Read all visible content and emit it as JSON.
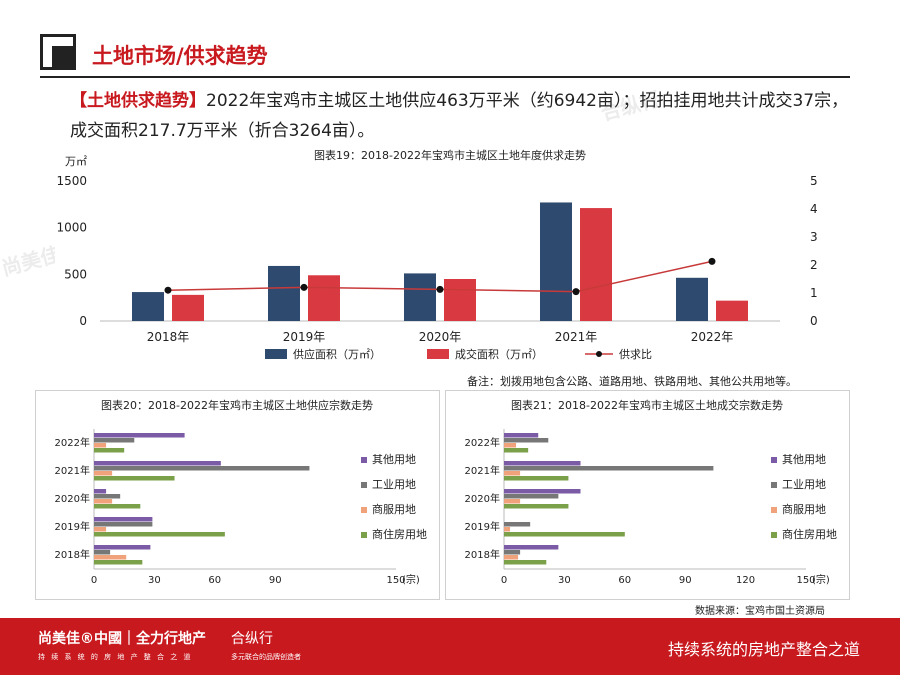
{
  "header": {
    "title": "土地市场/供求趋势"
  },
  "intro": {
    "tag": "【土地供求趋势】",
    "text": "2022年宝鸡市主城区土地供应463万平米（约6942亩）；招拍挂用地共计成交37宗，成交面积217.7万平米（折合3264亩）。"
  },
  "note": "备注：划拨用地包含公路、道路用地、铁路用地、其他公共用地等。",
  "source": "数据来源：宝鸡市国土资源局",
  "footer": {
    "brand": "尚美佳®中國｜全力行地产",
    "sub": "持 续 系 统 的 房 地 产 整 合 之 道",
    "brand2": "合纵行",
    "sub2": "多元联合的品牌创造者",
    "slogan": "持续系统的房地产整合之道"
  },
  "watermarks": [
    "尚美佳中國",
    "全力行地产",
    "合纵行"
  ],
  "colors": {
    "supply": "#2e4a6e",
    "deal": "#d93a42",
    "ratio": "#c83a3a",
    "other": "#7b5aa6",
    "industrial": "#777777",
    "commercial": "#f0a27a",
    "residential": "#7aa04a",
    "accent": "#c8191f"
  },
  "chart_data": [
    {
      "type": "bar",
      "title": "图表19：2018-2022年宝鸡市主城区土地年度供求走势",
      "ylabel": "万㎡",
      "categories": [
        "2018年",
        "2019年",
        "2020年",
        "2021年",
        "2022年"
      ],
      "ylim": [
        0,
        1500
      ],
      "y2lim": [
        0,
        5
      ],
      "yticks": [
        "0",
        "500",
        "1000",
        "1500"
      ],
      "y2ticks": [
        "0",
        "1",
        "2",
        "3",
        "4",
        "5"
      ],
      "series": [
        {
          "name": "供应面积（万㎡）",
          "type": "bar",
          "values": [
            310,
            590,
            510,
            1270,
            463
          ]
        },
        {
          "name": "成交面积（万㎡）",
          "type": "bar",
          "values": [
            280,
            490,
            450,
            1210,
            218
          ]
        },
        {
          "name": "供求比",
          "type": "line",
          "axis": "right",
          "values": [
            1.1,
            1.2,
            1.13,
            1.05,
            2.13
          ]
        }
      ]
    },
    {
      "type": "bar",
      "orientation": "horizontal",
      "title": "图表20：2018-2022年宝鸡市主城区土地供应宗数走势",
      "xunit": "(宗)",
      "categories": [
        "2022年",
        "2021年",
        "2020年",
        "2019年",
        "2018年"
      ],
      "xlim": [
        0,
        150
      ],
      "xticks": [
        "0",
        "30",
        "60",
        "90",
        "150"
      ],
      "series": [
        {
          "name": "其他用地",
          "values": [
            45,
            63,
            6,
            29,
            28
          ]
        },
        {
          "name": "工业用地",
          "values": [
            20,
            107,
            13,
            29,
            8
          ]
        },
        {
          "name": "商服用地",
          "values": [
            6,
            9,
            9,
            6,
            16
          ]
        },
        {
          "name": "商住房用地",
          "values": [
            15,
            40,
            23,
            65,
            24
          ]
        }
      ]
    },
    {
      "type": "bar",
      "orientation": "horizontal",
      "title": "图表21：2018-2022年宝鸡市主城区土地成交宗数走势",
      "xunit": "(宗)",
      "categories": [
        "2022年",
        "2021年",
        "2020年",
        "2019年",
        "2018年"
      ],
      "xlim": [
        0,
        150
      ],
      "xticks": [
        "0",
        "30",
        "60",
        "90",
        "120",
        "150"
      ],
      "series": [
        {
          "name": "其他用地",
          "values": [
            17,
            38,
            38,
            0,
            27
          ]
        },
        {
          "name": "工业用地",
          "values": [
            22,
            104,
            27,
            13,
            8
          ]
        },
        {
          "name": "商服用地",
          "values": [
            6,
            8,
            8,
            3,
            7
          ]
        },
        {
          "name": "商住房用地",
          "values": [
            12,
            32,
            32,
            60,
            21
          ]
        }
      ]
    }
  ]
}
